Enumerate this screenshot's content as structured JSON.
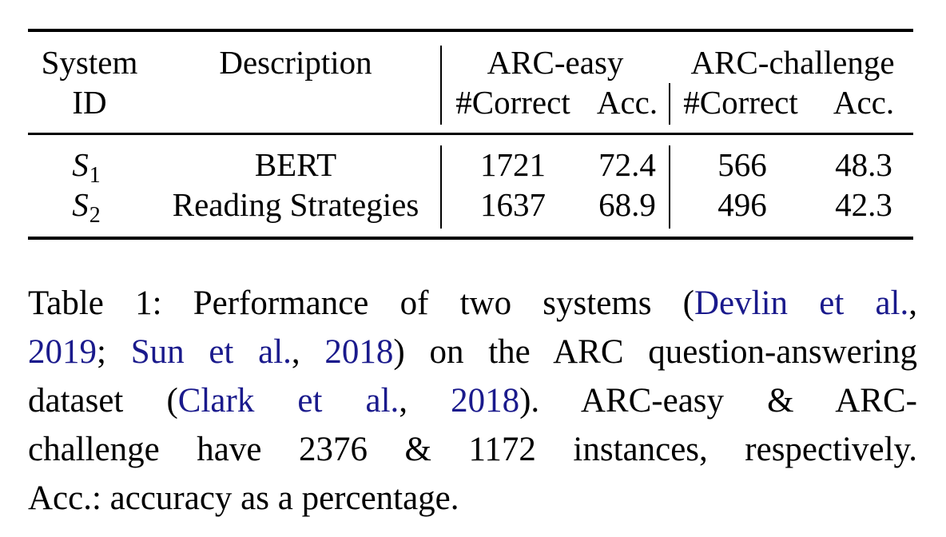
{
  "table": {
    "headers": {
      "system_id_line1": "System",
      "system_id_line2": "ID",
      "description": "Description",
      "group1": "ARC-easy",
      "group2": "ARC-challenge",
      "correct1": "#Correct",
      "acc1": "Acc.",
      "correct2": "#Correct",
      "acc2": "Acc."
    },
    "rows": [
      {
        "id_letter": "S",
        "id_sub": "1",
        "description": "BERT",
        "easy_correct": "1721",
        "easy_acc": "72.4",
        "challenge_correct": "566",
        "challenge_acc": "48.3"
      },
      {
        "id_letter": "S",
        "id_sub": "2",
        "description": "Reading Strategies",
        "easy_correct": "1637",
        "easy_acc": "68.9",
        "challenge_correct": "496",
        "challenge_acc": "42.3"
      }
    ]
  },
  "caption": {
    "l1_pre": "Table 1:  Performance of two systems (",
    "l1_cite": "Devlin et al.",
    "l1_post": ",",
    "l2_cite1": "2019",
    "l2_sep": "; ",
    "l2_cite2": "Sun et al.",
    "l2_comma": ", ",
    "l2_cite3": "2018",
    "l2_post": ") on the ARC question-answering",
    "l3_pre": "dataset (",
    "l3_cite1": "Clark et al.",
    "l3_comma": ", ",
    "l3_cite2": "2018",
    "l3_post": ").   ARC-easy & ARC-",
    "l4": "challenge have 2376 & 1172 instances, respectively.",
    "l5": "Acc.: accuracy as a percentage."
  },
  "colors": {
    "citation": "#1a1a8c",
    "text": "#000000"
  }
}
